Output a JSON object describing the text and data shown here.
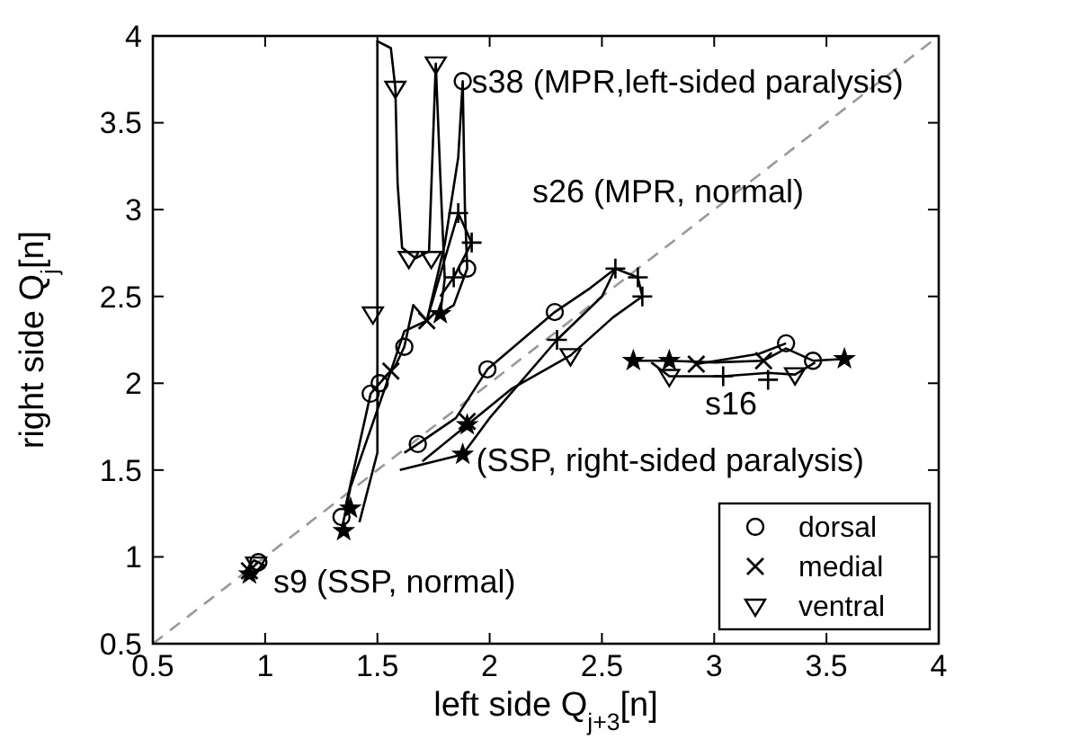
{
  "chart_data": {
    "type": "line",
    "xlabel": "left side  Q$_{j+3}$[n]",
    "ylabel": "right side  Q$_{j}$[n]",
    "xlim": [
      0.5,
      4
    ],
    "ylim": [
      0.5,
      4
    ],
    "xticks": [
      0.5,
      1,
      1.5,
      2,
      2.5,
      3,
      3.5,
      4
    ],
    "yticks": [
      0.5,
      1,
      1.5,
      2,
      2.5,
      3,
      3.5,
      4
    ],
    "legend": "bottom right",
    "annotations": [
      {
        "text": "s38 (MPR,left-sided paralysis)",
        "x": 1.92,
        "y": 3.74
      },
      "s26 (MPR, normal)",
      "s16",
      {
        "text": "(SSP, right-sided paralysis)",
        "x": 1.94,
        "y": 1.56
      },
      "s9 (SSP, normal)"
    ],
    "series": [
      {
        "color": "#999999",
        "line_style": "dashed",
        "marker": "none",
        "x": [
          0.5,
          4
        ],
        "values": [
          0.5,
          4
        ]
      },
      {
        "color": "#000000",
        "marker": "none",
        "x": [
          1.42,
          1.5,
          1.5,
          1.56,
          1.58,
          1.59,
          1.61,
          1.67,
          1.73,
          1.76,
          1.78,
          1.8,
          1.78
        ],
        "values": [
          1.2,
          1.6,
          3.97,
          3.93,
          3.7,
          3.15,
          2.78,
          2.72,
          2.76,
          3.84,
          3.2,
          2.6,
          2.4
        ]
      },
      {
        "color": "#000000",
        "marker": "none",
        "x": [
          1.36,
          1.47,
          1.51,
          1.58,
          1.62,
          1.66,
          1.72,
          1.8,
          1.86,
          1.88,
          1.89,
          1.9,
          1.84,
          1.78
        ],
        "values": [
          1.3,
          1.94,
          2.0,
          2.1,
          2.21,
          2.45,
          2.36,
          2.8,
          3.3,
          3.74,
          3.0,
          2.66,
          2.45,
          2.4
        ]
      },
      {
        "color": "#000000",
        "marker": "none",
        "x": [
          1.34,
          1.38,
          1.56,
          1.62,
          1.72,
          1.86,
          1.92,
          1.84,
          1.78
        ],
        "values": [
          1.15,
          1.4,
          2.07,
          2.3,
          2.36,
          2.98,
          2.81,
          2.61,
          2.5
        ]
      },
      {
        "color": "#000000",
        "marker": "none",
        "x": [
          1.62,
          1.68,
          1.85,
          1.99,
          2.29,
          2.45,
          2.56,
          2.66
        ],
        "values": [
          1.6,
          1.65,
          1.8,
          2.08,
          2.41,
          2.55,
          2.66,
          2.61
        ]
      },
      {
        "color": "#000000",
        "marker": "none",
        "x": [
          1.7,
          1.9,
          2.1,
          2.36,
          2.55,
          2.68,
          2.66
        ],
        "values": [
          1.55,
          1.76,
          1.97,
          2.16,
          2.38,
          2.5,
          2.61
        ]
      },
      {
        "color": "#000000",
        "marker": "none",
        "x": [
          1.6,
          1.88,
          2.0,
          2.3,
          2.5,
          2.56
        ],
        "values": [
          1.5,
          1.59,
          1.8,
          2.25,
          2.5,
          2.66
        ]
      },
      {
        "color": "#000000",
        "marker": "none",
        "x": [
          2.64,
          2.8,
          3.0,
          3.22,
          3.32,
          3.44,
          3.58
        ],
        "values": [
          2.13,
          2.13,
          2.12,
          2.13,
          2.2,
          2.13,
          2.14
        ]
      },
      {
        "color": "#000000",
        "marker": "none",
        "x": [
          2.72,
          2.8,
          3.04,
          3.24,
          3.36,
          3.45
        ],
        "values": [
          2.12,
          2.04,
          2.04,
          2.06,
          2.05,
          2.12
        ]
      },
      {
        "color": "#000000",
        "marker": "none",
        "x": [
          2.92,
          3.2,
          3.32
        ],
        "values": [
          2.11,
          2.17,
          2.23
        ]
      },
      {
        "color": "#000000",
        "marker": "none",
        "x": [
          0.9,
          0.95,
          1.0,
          0.93
        ],
        "values": [
          0.9,
          0.98,
          0.95,
          0.9
        ]
      },
      {
        "type": "scatter",
        "name": "dorsal",
        "color": "#000000",
        "marker": "circle",
        "x": [
          1.88,
          1.9,
          1.62,
          1.51,
          1.47,
          1.34,
          1.68,
          1.99,
          2.29,
          3.32,
          3.44,
          0.97
        ],
        "values": [
          3.74,
          2.66,
          2.21,
          2.0,
          1.94,
          1.23,
          1.65,
          2.08,
          2.41,
          2.23,
          2.13,
          0.97
        ]
      },
      {
        "type": "scatter",
        "name": "medial",
        "color": "#000000",
        "marker": "cross",
        "x": [
          1.72,
          1.56,
          1.9,
          2.92,
          3.22,
          0.93
        ],
        "values": [
          2.36,
          2.07,
          1.78,
          2.11,
          2.13,
          0.92
        ]
      },
      {
        "type": "scatter",
        "name": "ventral",
        "color": "#000000",
        "marker": "triangle",
        "x": [
          1.58,
          1.76,
          1.64,
          1.74,
          1.48,
          2.36,
          2.8,
          3.36,
          0.96
        ],
        "values": [
          3.7,
          3.84,
          2.72,
          2.72,
          2.4,
          2.16,
          2.04,
          2.05,
          0.96
        ]
      },
      {
        "type": "scatter",
        "color": "#000000",
        "marker": "plus",
        "x": [
          1.86,
          1.92,
          1.84,
          2.56,
          2.66,
          2.68,
          2.3,
          3.04,
          3.24
        ],
        "values": [
          2.98,
          2.81,
          2.61,
          2.66,
          2.61,
          2.5,
          2.25,
          2.04,
          2.02
        ]
      },
      {
        "type": "scatter",
        "color": "#000000",
        "marker": "star",
        "x": [
          1.78,
          1.38,
          1.35,
          1.88,
          1.9,
          2.64,
          2.8,
          3.58,
          0.93
        ],
        "values": [
          2.4,
          1.28,
          1.15,
          1.59,
          1.76,
          2.13,
          2.13,
          2.14,
          0.9
        ]
      }
    ]
  }
}
